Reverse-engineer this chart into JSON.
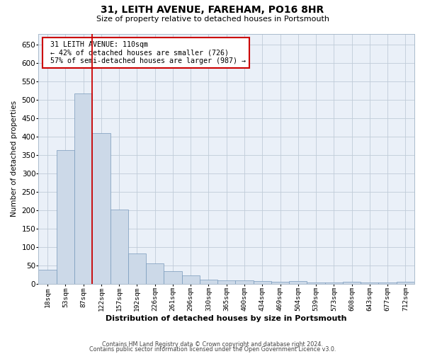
{
  "title": "31, LEITH AVENUE, FAREHAM, PO16 8HR",
  "subtitle": "Size of property relative to detached houses in Portsmouth",
  "xlabel": "Distribution of detached houses by size in Portsmouth",
  "ylabel": "Number of detached properties",
  "bar_color": "#ccd9e8",
  "bar_edge_color": "#7799bb",
  "categories": [
    "18sqm",
    "53sqm",
    "87sqm",
    "122sqm",
    "157sqm",
    "192sqm",
    "226sqm",
    "261sqm",
    "296sqm",
    "330sqm",
    "365sqm",
    "400sqm",
    "434sqm",
    "469sqm",
    "504sqm",
    "539sqm",
    "573sqm",
    "608sqm",
    "643sqm",
    "677sqm",
    "712sqm"
  ],
  "values": [
    38,
    363,
    518,
    410,
    202,
    83,
    55,
    35,
    22,
    12,
    10,
    10,
    8,
    5,
    8,
    3,
    3,
    5,
    3,
    3,
    5
  ],
  "ylim": [
    0,
    680
  ],
  "yticks": [
    0,
    50,
    100,
    150,
    200,
    250,
    300,
    350,
    400,
    450,
    500,
    550,
    600,
    650
  ],
  "property_label": "31 LEITH AVENUE: 110sqm",
  "pct_smaller": 42,
  "pct_smaller_count": 726,
  "pct_larger": 57,
  "pct_larger_count": 987,
  "annotation_box_color": "#ffffff",
  "annotation_box_edgecolor": "#cc0000",
  "red_line_color": "#cc0000",
  "footer_line1": "Contains HM Land Registry data © Crown copyright and database right 2024.",
  "footer_line2": "Contains public sector information licensed under the Open Government Licence v3.0.",
  "background_color": "#eaf0f8",
  "grid_color": "#c0ccd8"
}
